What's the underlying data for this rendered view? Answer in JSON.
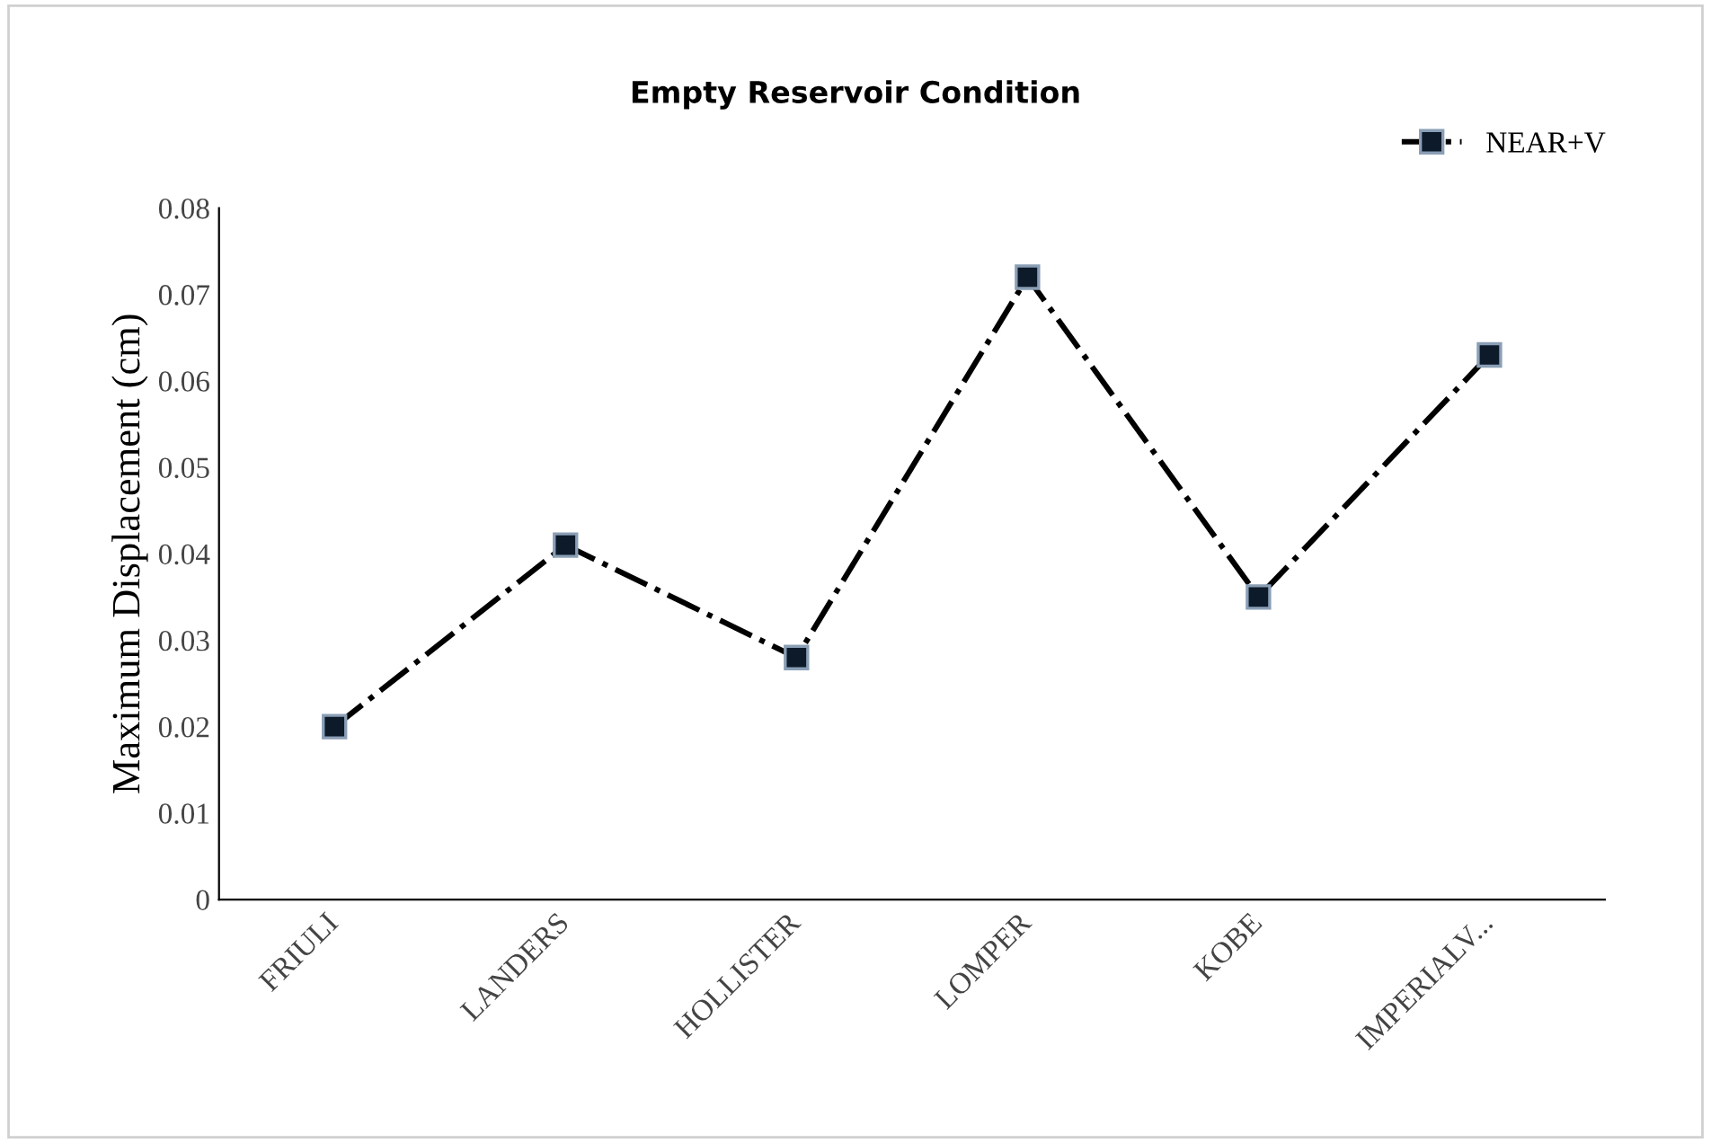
{
  "chart_data": {
    "type": "line",
    "title": "Empty Reservoir Condition",
    "ylabel": "Maximum Displacement (cm)",
    "categories": [
      "FRIULI",
      "LANDERS",
      "HOLLISTER",
      "LOMPER",
      "KOBE",
      "IMPERIALV..."
    ],
    "series": [
      {
        "name": "NEAR+V",
        "color": "#000000",
        "values": [
          0.02,
          0.041,
          0.028,
          0.072,
          0.035,
          0.063
        ]
      }
    ],
    "ylim": [
      0,
      0.08
    ],
    "yticks": [
      0,
      0.01,
      0.02,
      0.03,
      0.04,
      0.05,
      0.06,
      0.07,
      0.08
    ],
    "grid": false,
    "legend": "top right",
    "marker": "square",
    "line_style": "dashed"
  }
}
